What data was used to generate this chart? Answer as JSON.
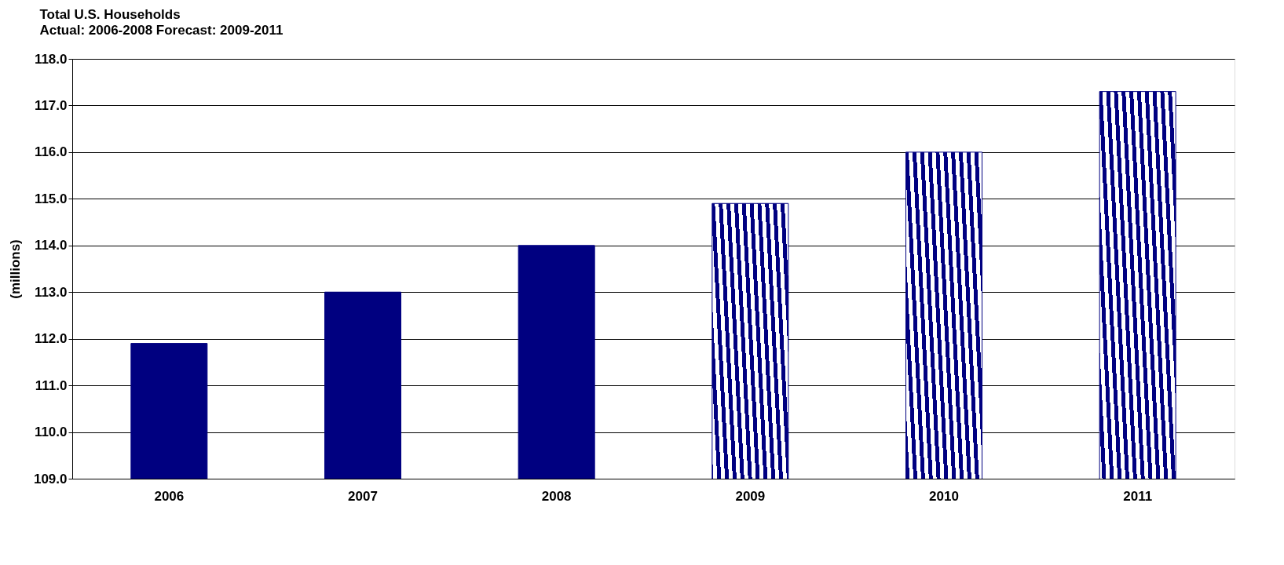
{
  "chart_data": {
    "type": "bar",
    "title": "Total U.S. Households",
    "subtitle": "Actual:  2006-2008  Forecast:  2009-2011",
    "ylabel": "(millions)",
    "categories": [
      "2006",
      "2007",
      "2008",
      "2009",
      "2010",
      "2011"
    ],
    "series": [
      {
        "color": "#000080",
        "values": [
          111.9,
          113.0,
          114.0,
          null,
          null,
          null
        ]
      },
      {
        "color": "#000080",
        "values": [
          null,
          null,
          null,
          114.9,
          116.0,
          117.3
        ]
      }
    ],
    "ylim": [
      109.0,
      118.0
    ],
    "yticks": [
      {
        "value": 109,
        "label": "109.0"
      },
      {
        "value": 110,
        "label": "110.0"
      },
      {
        "value": 111,
        "label": "111.0"
      },
      {
        "value": 112,
        "label": "112.0"
      },
      {
        "value": 113,
        "label": "113.0"
      },
      {
        "value": 114,
        "label": "114.0"
      },
      {
        "value": 115,
        "label": "115.0"
      },
      {
        "value": 116,
        "label": "116.0"
      },
      {
        "value": 117,
        "label": "117.0"
      },
      {
        "value": 118,
        "label": "118.0"
      }
    ],
    "grid": "y"
  }
}
